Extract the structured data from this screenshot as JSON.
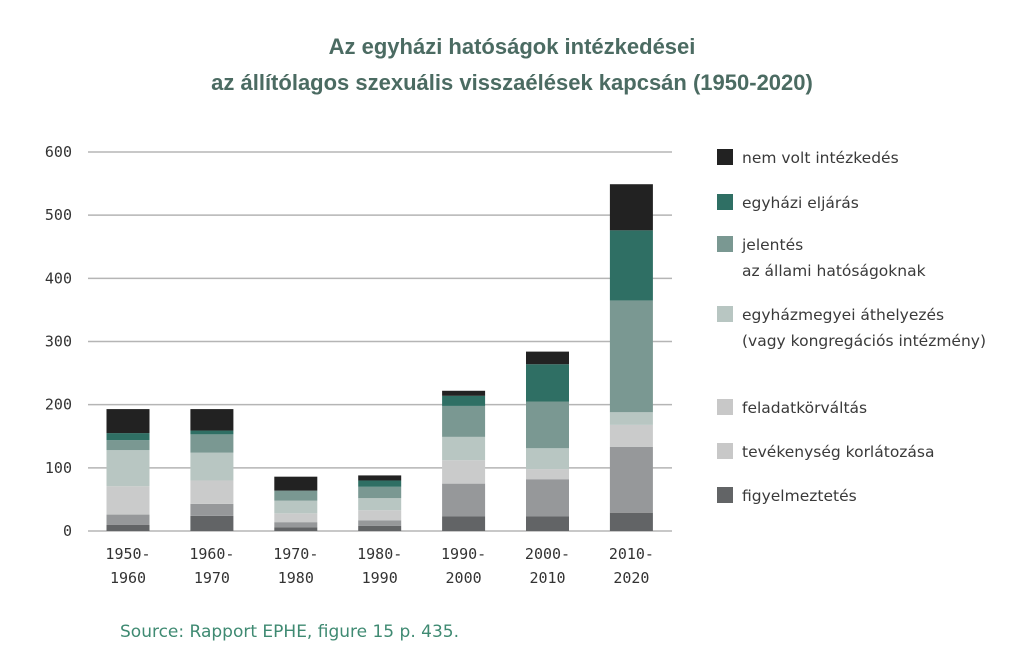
{
  "chart_data": {
    "type": "bar",
    "stacked": true,
    "title": [
      "Az egyházi hatóságok intézkedései",
      "az állítólagos szexuális visszaélések kapcsán (1950-2020)"
    ],
    "xlabel": "",
    "ylabel": "",
    "ylim": [
      0,
      600
    ],
    "yticks": [
      0,
      100,
      200,
      300,
      400,
      500,
      600
    ],
    "grid": true,
    "legend_position": "right",
    "categories": [
      [
        "1950-",
        "1960"
      ],
      [
        "1960-",
        "1970"
      ],
      [
        "1970-",
        "1980"
      ],
      [
        "1980-",
        "1990"
      ],
      [
        "1990-",
        "2000"
      ],
      [
        "2000-",
        "2010"
      ],
      [
        "2010-",
        "2020"
      ]
    ],
    "series": [
      {
        "name": "figyelmeztetés",
        "color": "#626466",
        "legend_color": "#626466",
        "values": [
          10,
          24,
          6,
          8,
          23,
          23,
          29
        ]
      },
      {
        "name": "tevékenység korlátozása",
        "color": "#96989a",
        "legend_color": "#c8c8c8",
        "values": [
          16,
          19,
          8,
          9,
          52,
          59,
          104
        ]
      },
      {
        "name": "feladatkörváltás",
        "color": "#cacbcb",
        "legend_color": "#c8c8c8",
        "values": [
          45,
          37,
          14,
          16,
          37,
          16,
          35
        ]
      },
      {
        "name": [
          "egyházmegyei áthelyezés",
          "(vagy kongregációs intézmény)"
        ],
        "color": "#b8c6c2",
        "legend_color": "#b8c6c2",
        "values": [
          57,
          44,
          20,
          19,
          37,
          33,
          20
        ]
      },
      {
        "name": [
          "jelentés",
          "az állami hatóságoknak"
        ],
        "color": "#7a9892",
        "legend_color": "#7a9892",
        "values": [
          16,
          29,
          16,
          18,
          49,
          74,
          177
        ]
      },
      {
        "name": "egyházi eljárás",
        "color": "#2f6f64",
        "legend_color": "#2f6f64",
        "values": [
          11,
          6,
          0,
          10,
          16,
          59,
          111
        ]
      },
      {
        "name": "nem volt intézkedés",
        "color": "#222222",
        "legend_color": "#222222",
        "values": [
          38,
          34,
          22,
          8,
          8,
          20,
          73
        ]
      }
    ]
  },
  "source": "Source: Rapport EPHE, figure 15 p. 435."
}
